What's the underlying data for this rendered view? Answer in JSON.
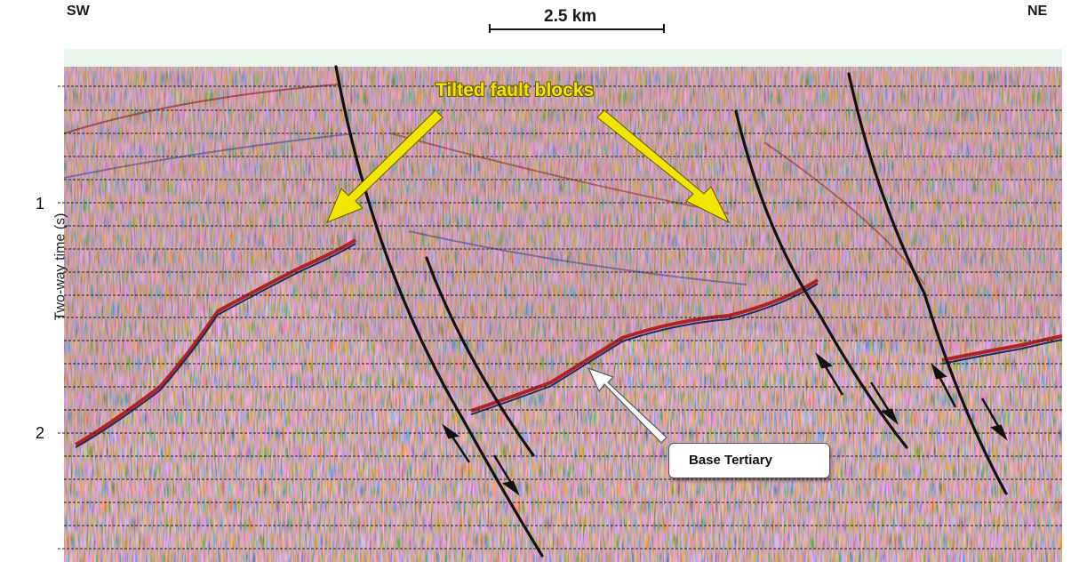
{
  "header": {
    "left_direction": "SW",
    "right_direction": "NE",
    "scale_bar_label": "2.5 km"
  },
  "axis": {
    "y_title": "Two-way time (s)",
    "y_tick_labels": [
      "1",
      "2"
    ]
  },
  "annotations": {
    "tilted_fault_blocks": "Tilted fault blocks",
    "base_tertiary": "Base Tertiary"
  },
  "colors": {
    "seismic_red": "#c0392b",
    "seismic_blue": "#2c3e80",
    "background_tint": "#e6f4ea",
    "callout_yellow": "#f2e600",
    "fault_lines": "#111111"
  }
}
